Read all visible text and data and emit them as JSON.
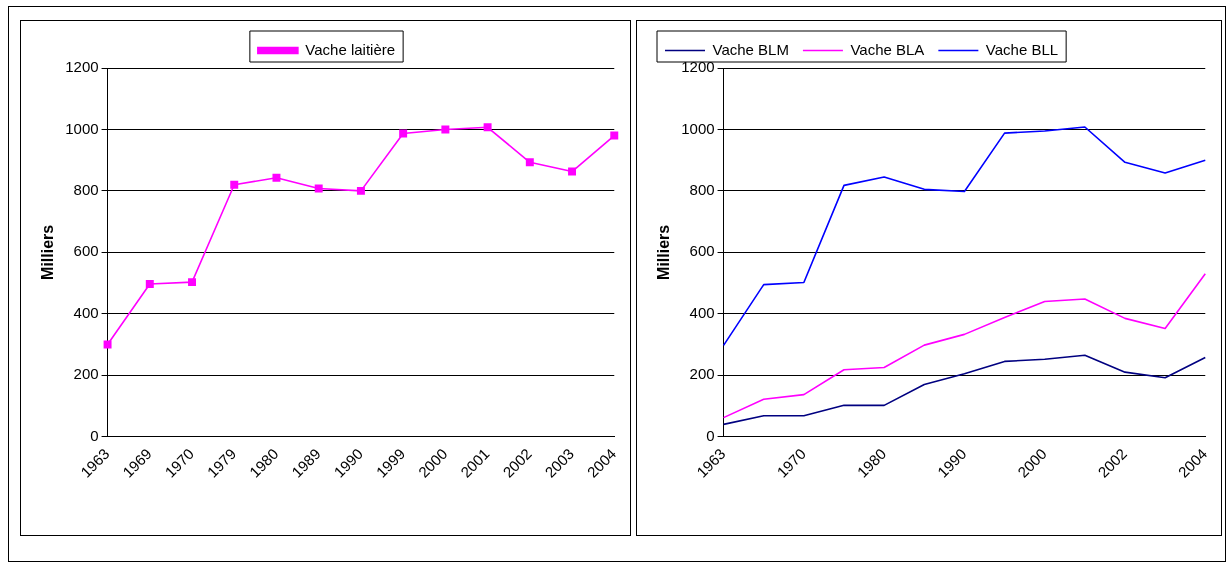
{
  "chart_data": [
    {
      "type": "line",
      "ylabel": "Milliers",
      "categories": [
        "1963",
        "1969",
        "1970",
        "1979",
        "1980",
        "1989",
        "1990",
        "1999",
        "2000",
        "2001",
        "2002",
        "2003",
        "2004"
      ],
      "series": [
        {
          "name": "Vache laitière",
          "color": "#ff00ff",
          "values": [
            300,
            497,
            503,
            820,
            843,
            808,
            800,
            987,
            1000,
            1007,
            893,
            863,
            980
          ]
        }
      ],
      "ylim": [
        0,
        1200
      ],
      "yticks": [
        0,
        200,
        400,
        600,
        800,
        1000,
        1200
      ],
      "grid": "y",
      "legend": "top",
      "marker": "square",
      "line_style": "solid"
    },
    {
      "type": "line",
      "ylabel": "Milliers",
      "categories": [
        "1963",
        null,
        "1970",
        null,
        "1980",
        null,
        "1990",
        null,
        "2000",
        null,
        "2002",
        null,
        "2004"
      ],
      "series": [
        {
          "name": "Vache BLM",
          "color": "#000080",
          "values": [
            40,
            68,
            68,
            102,
            102,
            170,
            205,
            245,
            252,
            265,
            210,
            192,
            258
          ]
        },
        {
          "name": "Vache BLA",
          "color": "#ff00ff",
          "values": [
            62,
            122,
            137,
            218,
            225,
            298,
            333,
            388,
            440,
            448,
            385,
            352,
            530
          ]
        },
        {
          "name": "Vache BLL",
          "color": "#0000ff",
          "values": [
            297,
            495,
            502,
            818,
            845,
            805,
            798,
            988,
            995,
            1008,
            893,
            858,
            900
          ]
        }
      ],
      "ylim": [
        0,
        1200
      ],
      "yticks": [
        0,
        200,
        400,
        600,
        800,
        1000,
        1200
      ],
      "grid": "y",
      "legend": "top",
      "marker": "none",
      "line_style": "solid"
    }
  ]
}
